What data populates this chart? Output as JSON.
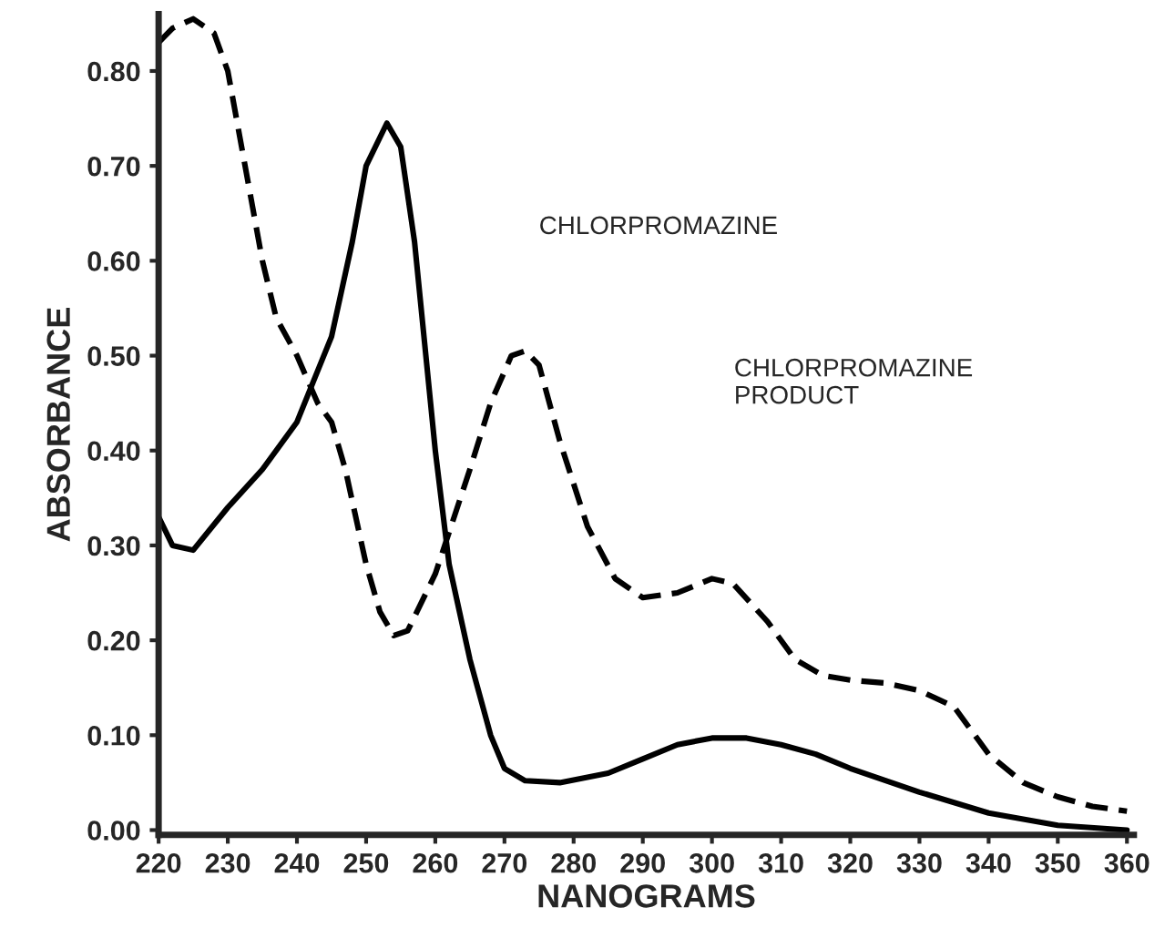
{
  "chart_data": {
    "type": "line",
    "xlabel": "NANOGRAMS",
    "ylabel": "ABSORBANCE",
    "xlim": [
      220,
      361
    ],
    "ylim": [
      -0.005,
      0.86
    ],
    "xticks": [
      220,
      230,
      240,
      250,
      260,
      270,
      280,
      290,
      300,
      310,
      320,
      330,
      340,
      350,
      360
    ],
    "yticks": [
      {
        "value": 0,
        "label": "0.00"
      },
      {
        "value": 0.1,
        "label": "0.10"
      },
      {
        "value": 0.2,
        "label": "0.20"
      },
      {
        "value": 0.3,
        "label": "0.30"
      },
      {
        "value": 0.4,
        "label": "0.40"
      },
      {
        "value": 0.5,
        "label": "0.50"
      },
      {
        "value": 0.6,
        "label": "0.60"
      },
      {
        "value": 0.7,
        "label": "0.70"
      },
      {
        "value": 0.8,
        "label": "0.80"
      }
    ],
    "grid": false,
    "legend": false,
    "marker": "none",
    "series": [
      {
        "color": "#000000",
        "line_style": "solid",
        "x": [
          220,
          222,
          225,
          230,
          235,
          240,
          245,
          248,
          250,
          253,
          255,
          257,
          260,
          262,
          265,
          268,
          270,
          273,
          278,
          285,
          290,
          295,
          300,
          305,
          310,
          315,
          320,
          330,
          340,
          350,
          360
        ],
        "values": [
          0.33,
          0.3,
          0.295,
          0.34,
          0.38,
          0.43,
          0.52,
          0.62,
          0.7,
          0.745,
          0.72,
          0.62,
          0.4,
          0.28,
          0.18,
          0.1,
          0.065,
          0.052,
          0.05,
          0.06,
          0.075,
          0.09,
          0.097,
          0.097,
          0.09,
          0.08,
          0.065,
          0.04,
          0.018,
          0.005,
          0.0
        ]
      },
      {
        "color": "#000000",
        "line_style": "dashed",
        "x": [
          220,
          222,
          225,
          228,
          230,
          233,
          235,
          237,
          240,
          243,
          245,
          247,
          250,
          252,
          254,
          256,
          260,
          265,
          268,
          271,
          273,
          275,
          278,
          282,
          286,
          290,
          295,
          300,
          303,
          308,
          312,
          316,
          320,
          325,
          330,
          335,
          340,
          345,
          350,
          355,
          360
        ],
        "values": [
          0.83,
          0.845,
          0.855,
          0.84,
          0.8,
          0.68,
          0.6,
          0.54,
          0.5,
          0.45,
          0.43,
          0.38,
          0.28,
          0.23,
          0.205,
          0.21,
          0.27,
          0.38,
          0.45,
          0.5,
          0.505,
          0.49,
          0.41,
          0.32,
          0.265,
          0.245,
          0.25,
          0.265,
          0.26,
          0.22,
          0.18,
          0.163,
          0.158,
          0.155,
          0.147,
          0.13,
          0.08,
          0.05,
          0.035,
          0.025,
          0.02
        ]
      }
    ],
    "annotations": [
      "CHLORPROMAZINE",
      "CHLORPROMAZINE\nPRODUCT"
    ]
  }
}
